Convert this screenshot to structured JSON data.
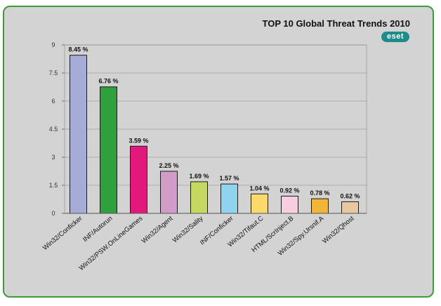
{
  "chart_data": {
    "type": "bar",
    "title": "TOP 10 Global Threat Trends 2010",
    "logo_text": "eset",
    "xlabel": "",
    "ylabel": "",
    "ylim": [
      0,
      9
    ],
    "yticks": [
      "0",
      "1.5",
      "3",
      "4.5",
      "6",
      "7.5",
      "9"
    ],
    "grid": true,
    "categories": [
      "Win32/Conficker",
      "INF/Autorun",
      "Win32/PSW.OnLineGames",
      "Win32/Agent",
      "Win32/Sality",
      "INF/Conficker",
      "Win32/Tifaut.C",
      "HTML/ScrInject.B",
      "Win32/Spy.Ursnif.A",
      "Win32/Qhost"
    ],
    "values": [
      8.45,
      6.76,
      3.59,
      2.25,
      1.69,
      1.57,
      1.04,
      0.92,
      0.78,
      0.62
    ],
    "data_labels": [
      "8.45 %",
      "6.76 %",
      "3.59 %",
      "2.25 %",
      "1.69 %",
      "1.57 %",
      "1.04 %",
      "0.92 %",
      "0.78 %",
      "0.62 %"
    ],
    "colors": [
      "#a7acd6",
      "#2ea03c",
      "#e2187a",
      "#d19cc8",
      "#c6d762",
      "#8fd3ef",
      "#fbd96a",
      "#f9cde0",
      "#f1b53a",
      "#e8c8a0"
    ]
  }
}
